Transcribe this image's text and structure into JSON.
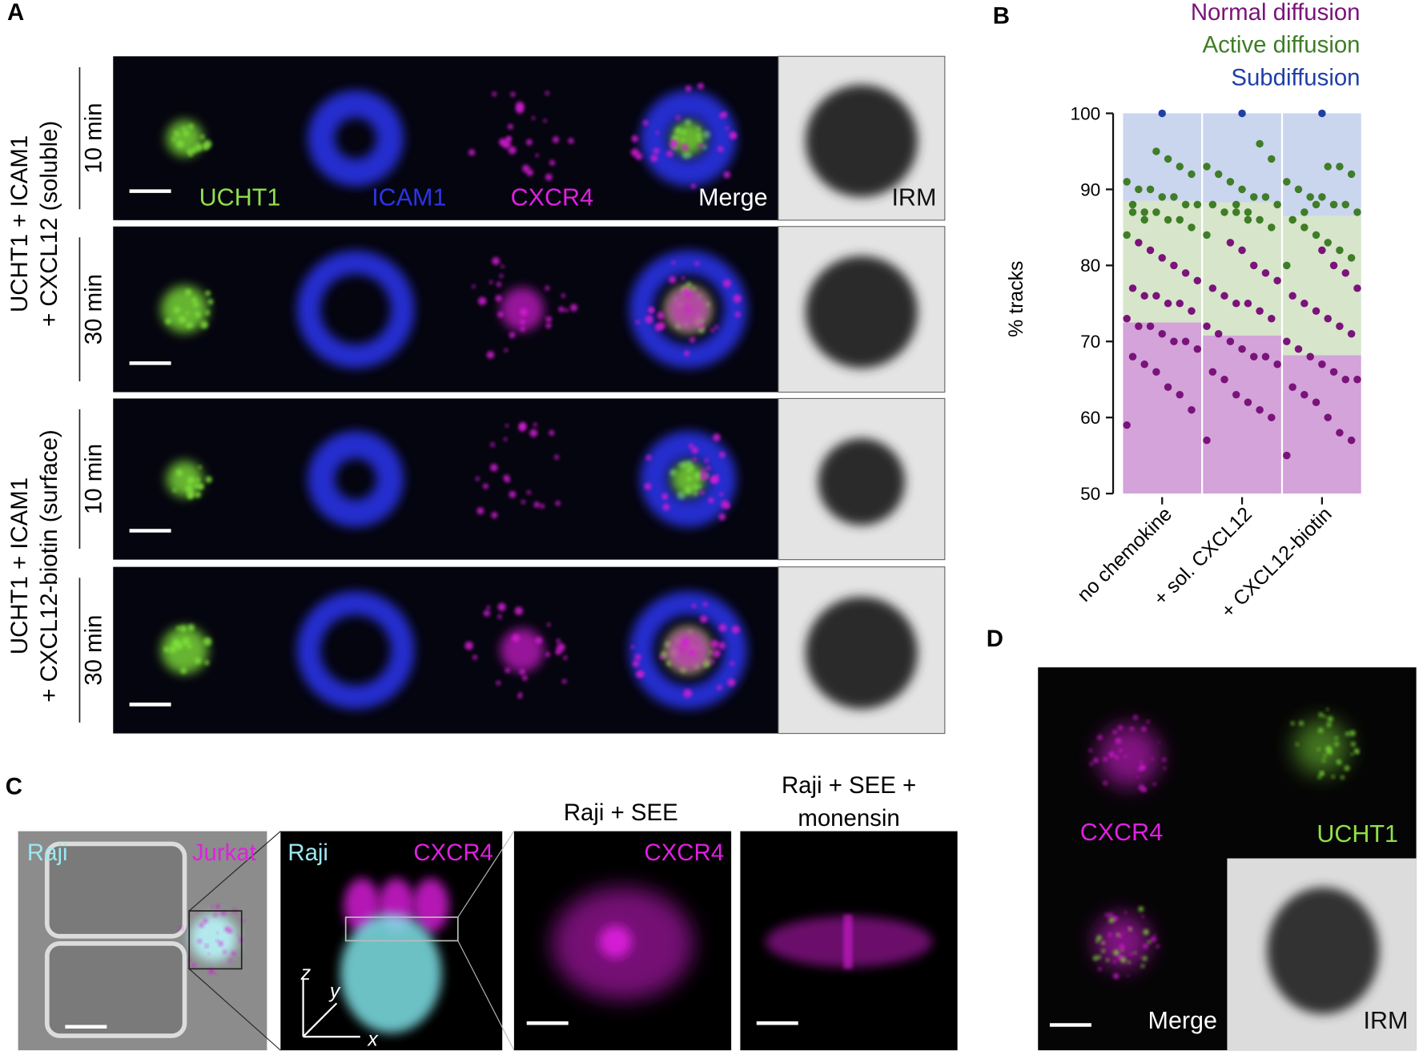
{
  "panels": {
    "A": {
      "label": "A",
      "channels": [
        "UCHT1",
        "ICAM1",
        "CXCR4",
        "Merge",
        "IRM"
      ],
      "conditions": [
        {
          "lines": [
            "UCHT1 + ICAM1",
            "+ CXCL12 (soluble)"
          ],
          "times": [
            "10 min",
            "30 min"
          ]
        },
        {
          "lines": [
            "UCHT1 + ICAM1",
            "+ CXCL12-biotin (surface)"
          ],
          "times": [
            "10 min",
            "30 min"
          ]
        }
      ]
    },
    "B": {
      "label": "B"
    },
    "C": {
      "label": "C",
      "images": [
        {
          "labels": [
            "Raji",
            "Jurkat"
          ]
        },
        {
          "labels": [
            "Raji",
            "CXCR4"
          ],
          "axes": [
            "z",
            "y",
            "x"
          ]
        },
        {
          "title": [
            "Raji + SEE"
          ],
          "labels": [
            "CXCR4"
          ]
        },
        {
          "title": [
            "Raji + SEE +",
            "monensin"
          ]
        }
      ]
    },
    "D": {
      "label": "D",
      "labels": [
        "CXCR4",
        "UCHT1",
        "Merge",
        "IRM"
      ]
    }
  },
  "chart_data": {
    "type": "bar",
    "y_label": "% tracks",
    "categories": [
      "no chemokine",
      "+ sol. CXCL12",
      "+ CXCL12-biotin"
    ],
    "ylim": [
      50,
      100
    ],
    "yticks": [
      50,
      60,
      70,
      80,
      90,
      100
    ],
    "series": [
      {
        "name": "Normal diffusion",
        "color": "#7a137a",
        "bar_color": "#d3a3d9",
        "values": [
          72.5,
          70.8,
          68.2
        ],
        "points": [
          [
            59,
            61,
            63,
            64,
            66,
            67,
            68,
            69,
            70,
            70,
            71,
            72,
            72,
            73,
            74,
            75,
            75,
            76,
            76,
            77,
            78,
            79,
            80,
            81,
            82,
            83
          ],
          [
            57,
            60,
            61,
            62,
            63,
            65,
            66,
            67,
            68,
            68,
            69,
            70,
            71,
            72,
            73,
            74,
            75,
            75,
            76,
            77,
            78,
            79,
            80,
            82,
            83
          ],
          [
            55,
            57,
            58,
            60,
            62,
            63,
            64,
            65,
            65,
            66,
            67,
            68,
            69,
            70,
            71,
            72,
            73,
            74,
            75,
            76,
            77,
            79,
            80,
            82
          ]
        ]
      },
      {
        "name": "Active diffusion",
        "color": "#3f7d27",
        "bar_color": "#d7e5cb",
        "values": [
          16,
          17.5,
          18.3
        ],
        "points": [
          [
            84,
            85,
            86,
            86,
            87,
            87,
            88,
            88,
            88,
            89,
            89,
            90,
            90,
            91,
            92,
            93,
            94,
            95,
            86,
            87
          ],
          [
            84,
            85,
            86,
            86,
            87,
            87,
            88,
            88,
            89,
            89,
            90,
            91,
            92,
            93,
            94,
            96,
            87,
            88
          ],
          [
            80,
            81,
            82,
            83,
            84,
            85,
            86,
            87,
            88,
            88,
            89,
            89,
            90,
            91,
            92,
            93,
            93,
            88,
            87,
            86
          ]
        ]
      },
      {
        "name": "Subdiffusion",
        "color": "#1f3fa6",
        "bar_color": "#cad5ee",
        "values": [
          11.5,
          11.7,
          13.5
        ],
        "points": [
          [
            100
          ],
          [
            100
          ],
          [
            100
          ]
        ]
      }
    ]
  }
}
